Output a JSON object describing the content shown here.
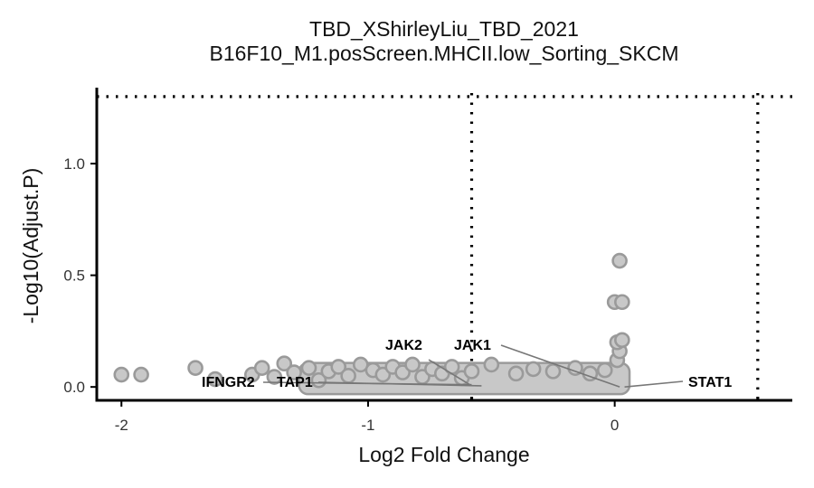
{
  "chart_data": {
    "type": "scatter",
    "title": "TBD_XShirleyLiu_TBD_2021",
    "subtitle": "B16F10_M1.posScreen.MHCII.low_Sorting_SKCM",
    "xlabel": "Log2 Fold Change",
    "ylabel": "-Log10(Adjust.P)",
    "xlim": [
      -2.1,
      0.72
    ],
    "ylim": [
      -0.06,
      1.34
    ],
    "x_ticks": [
      -2,
      -1,
      0
    ],
    "x_tick_labels": [
      "-2",
      "-1",
      "0"
    ],
    "y_ticks": [
      0.0,
      0.5,
      1.0
    ],
    "y_tick_labels": [
      "0.0",
      "0.5",
      "1.0"
    ],
    "thresholds": {
      "fold_change_lines": [
        -0.58,
        0.58
      ],
      "significance_line": 1.3
    },
    "point_color": "#c8c8c8",
    "point_stroke": "#9a9a9a",
    "grid": false,
    "points": [
      {
        "x": -2.0,
        "y": 0.055
      },
      {
        "x": -1.92,
        "y": 0.055
      },
      {
        "x": -1.7,
        "y": 0.085
      },
      {
        "x": -1.62,
        "y": 0.035
      },
      {
        "x": -1.47,
        "y": 0.055
      },
      {
        "x": -1.43,
        "y": 0.085
      },
      {
        "x": -1.38,
        "y": 0.045
      },
      {
        "x": -1.34,
        "y": 0.105
      },
      {
        "x": -1.3,
        "y": 0.065
      },
      {
        "x": -1.24,
        "y": 0.085
      },
      {
        "x": -1.2,
        "y": 0.03
      },
      {
        "x": -1.16,
        "y": 0.07
      },
      {
        "x": -1.12,
        "y": 0.09
      },
      {
        "x": -1.08,
        "y": 0.05
      },
      {
        "x": -1.03,
        "y": 0.1
      },
      {
        "x": -0.98,
        "y": 0.075
      },
      {
        "x": -0.94,
        "y": 0.055
      },
      {
        "x": -0.9,
        "y": 0.09
      },
      {
        "x": -0.86,
        "y": 0.065
      },
      {
        "x": -0.82,
        "y": 0.1
      },
      {
        "x": -0.78,
        "y": 0.045
      },
      {
        "x": -0.74,
        "y": 0.08
      },
      {
        "x": -0.7,
        "y": 0.06
      },
      {
        "x": -0.66,
        "y": 0.09
      },
      {
        "x": -0.62,
        "y": 0.04
      },
      {
        "x": -0.58,
        "y": 0.07
      },
      {
        "x": -0.5,
        "y": 0.1
      },
      {
        "x": -0.4,
        "y": 0.06
      },
      {
        "x": -0.33,
        "y": 0.08
      },
      {
        "x": -0.25,
        "y": 0.07
      },
      {
        "x": -0.16,
        "y": 0.085
      },
      {
        "x": -0.1,
        "y": 0.06
      },
      {
        "x": -0.04,
        "y": 0.075
      },
      {
        "x": 0.01,
        "y": 0.12
      },
      {
        "x": 0.02,
        "y": 0.16
      },
      {
        "x": 0.01,
        "y": 0.2
      },
      {
        "x": 0.03,
        "y": 0.21
      },
      {
        "x": 0.0,
        "y": 0.38
      },
      {
        "x": 0.03,
        "y": 0.38
      },
      {
        "x": 0.02,
        "y": 0.565
      }
    ],
    "dense_band": {
      "x_min": -1.28,
      "x_max": 0.06,
      "y_min": 0.0,
      "y_max": 0.075
    },
    "annotations": [
      {
        "label": "IFNGR2",
        "x": -0.58,
        "y": 0.01
      },
      {
        "label": "TAP1",
        "x": -0.54,
        "y": 0.005
      },
      {
        "label": "JAK2",
        "x": -0.58,
        "y": 0.005
      },
      {
        "label": "JAK1",
        "x": 0.02,
        "y": 0.0
      },
      {
        "label": "STAT1",
        "x": 0.04,
        "y": 0.0
      }
    ]
  }
}
